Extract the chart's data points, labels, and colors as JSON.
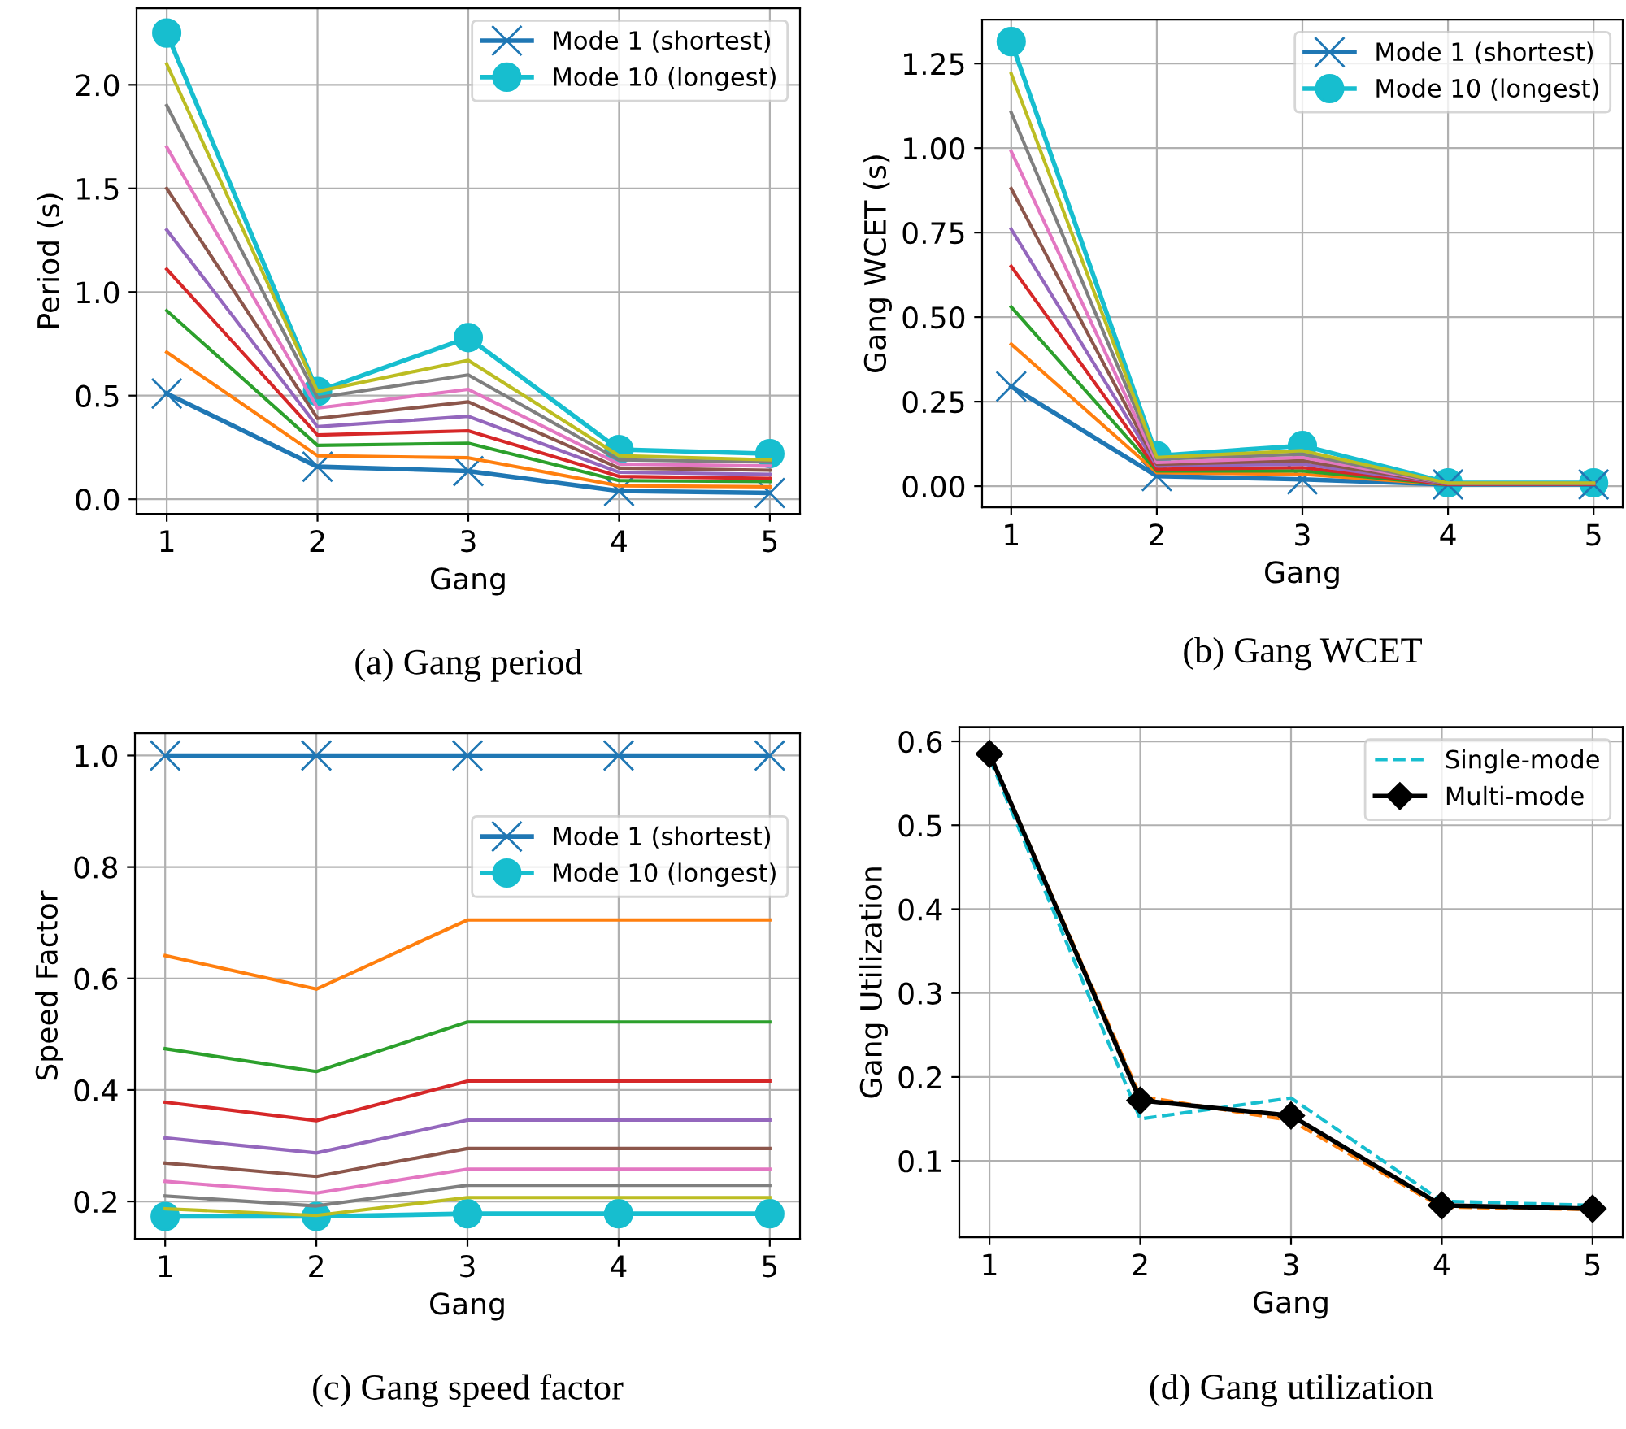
{
  "chart_data": [
    {
      "type": "line",
      "xlabel": "Gang",
      "ylabel": "Period (s)",
      "x": [
        1,
        2,
        3,
        4,
        5
      ],
      "xlim": [
        0.8,
        5.2
      ],
      "xticks": [
        1,
        2,
        3,
        4,
        5
      ],
      "ylim": [
        -0.07,
        2.37
      ],
      "yticks": [
        {
          "value": 0,
          "label": "0.0"
        },
        0.5,
        {
          "value": 1,
          "label": "1.0"
        },
        1.5,
        {
          "value": 2,
          "label": "2.0"
        }
      ],
      "grid": true,
      "legend": "upper right",
      "annotations": [
        "(a) Gang period"
      ],
      "series": [
        {
          "name": "Mode 1 (shortest)",
          "color": "#1f77b4",
          "marker": "cross",
          "values": [
            0.51,
            0.157,
            0.136,
            0.04,
            0.03
          ]
        },
        {
          "color": "#ff7f0e",
          "values": [
            0.71,
            0.21,
            0.2,
            0.065,
            0.06
          ]
        },
        {
          "color": "#2ca02c",
          "values": [
            0.91,
            0.26,
            0.27,
            0.09,
            0.085
          ]
        },
        {
          "color": "#d62728",
          "values": [
            1.11,
            0.31,
            0.33,
            0.11,
            0.1
          ]
        },
        {
          "color": "#9467bd",
          "values": [
            1.3,
            0.35,
            0.4,
            0.13,
            0.12
          ]
        },
        {
          "color": "#8c564b",
          "values": [
            1.5,
            0.39,
            0.47,
            0.15,
            0.14
          ]
        },
        {
          "color": "#e377c2",
          "values": [
            1.7,
            0.44,
            0.53,
            0.17,
            0.16
          ]
        },
        {
          "color": "#7f7f7f",
          "values": [
            1.9,
            0.49,
            0.6,
            0.19,
            0.18
          ]
        },
        {
          "color": "#bcbd22",
          "values": [
            2.1,
            0.52,
            0.67,
            0.21,
            0.19
          ]
        },
        {
          "name": "Mode 10 (longest)",
          "color": "#17becf",
          "marker": "circle",
          "values": [
            2.25,
            0.52,
            0.78,
            0.24,
            0.22
          ]
        }
      ]
    },
    {
      "type": "line",
      "xlabel": "Gang",
      "ylabel": "Gang WCET (s)",
      "x": [
        1,
        2,
        3,
        4,
        5
      ],
      "xlim": [
        0.8,
        5.2
      ],
      "xticks": [
        1,
        2,
        3,
        4,
        5
      ],
      "ylim": [
        -0.0625,
        1.38
      ],
      "yticks": [
        {
          "value": 0,
          "label": "0.00"
        },
        0.25,
        {
          "value": 0.5,
          "label": "0.50"
        },
        0.75,
        {
          "value": 1,
          "label": "1.00"
        },
        1.25
      ],
      "grid": true,
      "legend": "upper right",
      "annotations": [
        "(b) Gang WCET"
      ],
      "series": [
        {
          "name": "Mode 1 (shortest)",
          "color": "#1f77b4",
          "marker": "cross",
          "values": [
            0.295,
            0.03,
            0.02,
            0.005,
            0.005
          ]
        },
        {
          "color": "#ff7f0e",
          "values": [
            0.42,
            0.04,
            0.035,
            0.005,
            0.005
          ]
        },
        {
          "color": "#2ca02c",
          "values": [
            0.53,
            0.045,
            0.045,
            0.005,
            0.005
          ]
        },
        {
          "color": "#d62728",
          "values": [
            0.65,
            0.05,
            0.055,
            0.005,
            0.005
          ]
        },
        {
          "color": "#9467bd",
          "values": [
            0.76,
            0.06,
            0.065,
            0.007,
            0.007
          ]
        },
        {
          "color": "#8c564b",
          "values": [
            0.88,
            0.065,
            0.075,
            0.007,
            0.007
          ]
        },
        {
          "color": "#e377c2",
          "values": [
            0.99,
            0.07,
            0.085,
            0.008,
            0.008
          ]
        },
        {
          "color": "#7f7f7f",
          "values": [
            1.105,
            0.08,
            0.095,
            0.008,
            0.008
          ]
        },
        {
          "color": "#bcbd22",
          "values": [
            1.22,
            0.085,
            0.105,
            0.009,
            0.009
          ]
        },
        {
          "name": "Mode 10 (longest)",
          "color": "#17becf",
          "marker": "circle",
          "values": [
            1.315,
            0.09,
            0.12,
            0.01,
            0.01
          ]
        }
      ]
    },
    {
      "type": "line",
      "xlabel": "Gang",
      "ylabel": "Speed Factor",
      "x": [
        1,
        2,
        3,
        4,
        5
      ],
      "xlim": [
        0.8,
        5.2
      ],
      "xticks": [
        1,
        2,
        3,
        4,
        5
      ],
      "ylim": [
        0.133,
        1.04
      ],
      "yticks": [
        0.2,
        0.4,
        0.6,
        0.8,
        {
          "value": 1,
          "label": "1.0"
        }
      ],
      "grid": true,
      "legend": "upper right",
      "annotations": [
        "(c) Gang speed factor"
      ],
      "series": [
        {
          "name": "Mode 1 (shortest)",
          "color": "#1f77b4",
          "marker": "cross",
          "values": [
            1.0,
            1.0,
            1.0,
            1.0,
            1.0
          ]
        },
        {
          "color": "#ff7f0e",
          "values": [
            0.641,
            0.581,
            0.705,
            0.705,
            0.705
          ]
        },
        {
          "color": "#2ca02c",
          "values": [
            0.474,
            0.433,
            0.522,
            0.522,
            0.522
          ]
        },
        {
          "color": "#d62728",
          "values": [
            0.378,
            0.345,
            0.416,
            0.416,
            0.416
          ]
        },
        {
          "color": "#9467bd",
          "values": [
            0.314,
            0.287,
            0.346,
            0.346,
            0.346
          ]
        },
        {
          "color": "#8c564b",
          "values": [
            0.269,
            0.245,
            0.295,
            0.295,
            0.295
          ]
        },
        {
          "color": "#e377c2",
          "values": [
            0.236,
            0.215,
            0.258,
            0.258,
            0.258
          ]
        },
        {
          "color": "#7f7f7f",
          "values": [
            0.21,
            0.192,
            0.229,
            0.229,
            0.229
          ]
        },
        {
          "color": "#bcbd22",
          "values": [
            0.187,
            0.175,
            0.207,
            0.207,
            0.207
          ]
        },
        {
          "name": "Mode 10 (longest)",
          "color": "#17becf",
          "marker": "circle",
          "values": [
            0.173,
            0.173,
            0.178,
            0.178,
            0.178
          ]
        }
      ]
    },
    {
      "type": "line",
      "xlabel": "Gang",
      "ylabel": "Gang Utilization",
      "x": [
        1,
        2,
        3,
        4,
        5
      ],
      "xlim": [
        0.8,
        5.2
      ],
      "xticks": [
        1,
        2,
        3,
        4,
        5
      ],
      "ylim": [
        0.009,
        0.617
      ],
      "yticks": [
        0.1,
        0.2,
        0.3,
        0.4,
        0.5,
        0.6
      ],
      "grid": true,
      "legend": "upper right",
      "annotations": [
        "(d) Gang utilization"
      ],
      "series": [
        {
          "color": "#ff7f0e",
          "line_style": "dashed",
          "values": [
            0.585,
            0.177,
            0.148,
            0.045,
            0.042
          ]
        },
        {
          "name": "Single-mode",
          "color": "#17becf",
          "line_style": "dashed",
          "values": [
            0.58,
            0.15,
            0.175,
            0.052,
            0.047
          ]
        },
        {
          "name": "Multi-mode",
          "color": "#000000",
          "marker": "diamond",
          "values": [
            0.585,
            0.172,
            0.154,
            0.047,
            0.043
          ]
        }
      ]
    }
  ]
}
